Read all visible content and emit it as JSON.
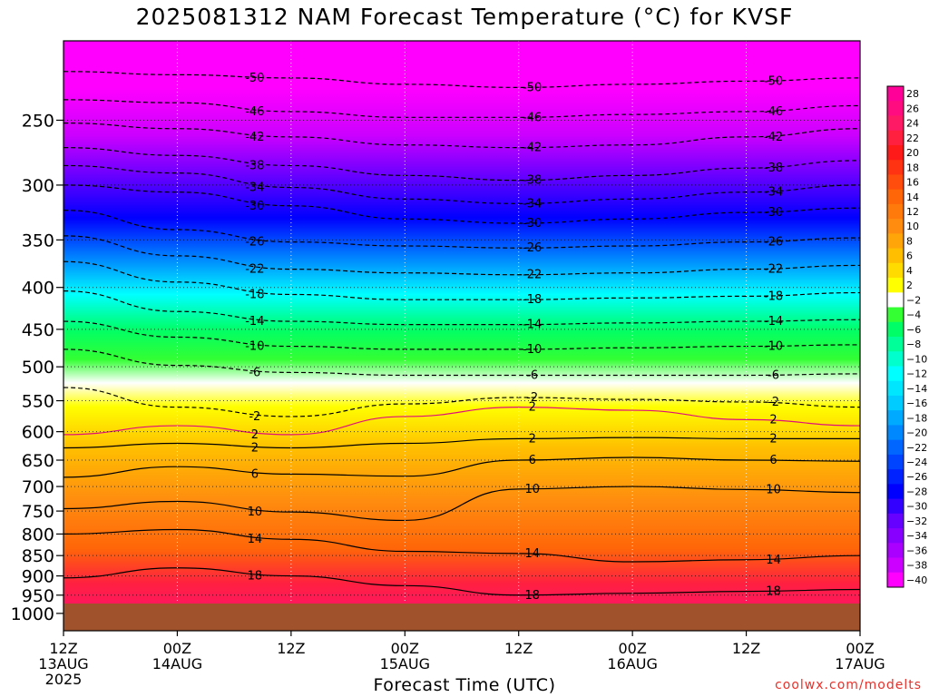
{
  "title": "2025081312 NAM Forecast Temperature (°C) for KVSF",
  "xaxis_title": "Forecast Time (UTC)",
  "credit": "coolwx.com/modelts",
  "chart_data": {
    "type": "heatmap",
    "title": "2025081312 NAM Forecast Temperature (°C) for KVSF",
    "xlabel": "Forecast Time (UTC)",
    "ylabel": "",
    "y_scale": "log-pressure (hPa), inverted",
    "y_ticks": [
      250,
      300,
      350,
      400,
      450,
      500,
      550,
      600,
      650,
      700,
      750,
      800,
      850,
      900,
      950,
      1000
    ],
    "x_ticks": [
      {
        "hour": 0,
        "label": "12Z",
        "sub1": "13AUG",
        "sub2": "2025"
      },
      {
        "hour": 12,
        "label": "00Z",
        "sub1": "14AUG",
        "sub2": ""
      },
      {
        "hour": 24,
        "label": "12Z",
        "sub1": "",
        "sub2": ""
      },
      {
        "hour": 36,
        "label": "00Z",
        "sub1": "15AUG",
        "sub2": ""
      },
      {
        "hour": 48,
        "label": "12Z",
        "sub1": "",
        "sub2": ""
      },
      {
        "hour": 60,
        "label": "00Z",
        "sub1": "16AUG",
        "sub2": ""
      },
      {
        "hour": 72,
        "label": "12Z",
        "sub1": "",
        "sub2": ""
      },
      {
        "hour": 84,
        "label": "00Z",
        "sub1": "17AUG",
        "sub2": ""
      }
    ],
    "grid": true,
    "legend": "right",
    "colorbar": {
      "levels": [
        28,
        26,
        24,
        22,
        20,
        18,
        16,
        14,
        12,
        10,
        8,
        6,
        4,
        2,
        -2,
        -4,
        -6,
        -8,
        -10,
        -12,
        -14,
        -16,
        -18,
        -20,
        -22,
        -24,
        -26,
        -28,
        -30,
        -32,
        -34,
        -36,
        -38,
        -40
      ],
      "colors": [
        "#ff0099",
        "#ff0d80",
        "#ff1a66",
        "#ff2040",
        "#ff1a1a",
        "#ff3312",
        "#ff4d0d",
        "#ff6608",
        "#ff7a0a",
        "#ff8c0f",
        "#ffa50a",
        "#ffbf00",
        "#ffdb00",
        "#ffff00",
        "#ffffff",
        "#33ff33",
        "#00ff66",
        "#00ff99",
        "#00ffcc",
        "#00ffff",
        "#00e6ff",
        "#00ccff",
        "#00aaff",
        "#0088ff",
        "#0066ff",
        "#0044ff",
        "#0022ff",
        "#0000ff",
        "#3300ff",
        "#6600ff",
        "#8800ff",
        "#aa00ff",
        "#cc00ff",
        "#ff00ff"
      ]
    },
    "isotherms": [
      {
        "label": "-50",
        "pressures": [
          218,
          220,
          222,
          226,
          228,
          226,
          224,
          222
        ]
      },
      {
        "label": "-46",
        "pressures": [
          236,
          238,
          244,
          248,
          248,
          246,
          244,
          240
        ]
      },
      {
        "label": "-42",
        "pressures": [
          252,
          256,
          262,
          268,
          270,
          268,
          262,
          256
        ]
      },
      {
        "label": "-38",
        "pressures": [
          270,
          276,
          284,
          292,
          296,
          292,
          286,
          280
        ]
      },
      {
        "label": "-34",
        "pressures": [
          284,
          290,
          302,
          312,
          316,
          312,
          306,
          300
        ]
      },
      {
        "label": "-30",
        "pressures": [
          300,
          306,
          318,
          330,
          334,
          330,
          324,
          320
        ]
      },
      {
        "label": "-26",
        "pressures": [
          322,
          340,
          352,
          356,
          358,
          356,
          352,
          348
        ]
      },
      {
        "label": "-22",
        "pressures": [
          346,
          366,
          380,
          384,
          386,
          384,
          380,
          376
        ]
      },
      {
        "label": "-18",
        "pressures": [
          372,
          394,
          408,
          414,
          414,
          412,
          410,
          406
        ]
      },
      {
        "label": "-14",
        "pressures": [
          404,
          428,
          440,
          444,
          444,
          442,
          440,
          438
        ]
      },
      {
        "label": "-10",
        "pressures": [
          440,
          460,
          472,
          476,
          476,
          474,
          472,
          470
        ]
      },
      {
        "label": "-6",
        "pressures": [
          476,
          498,
          508,
          512,
          512,
          512,
          512,
          510
        ]
      },
      {
        "label": "-2",
        "pressures": [
          530,
          560,
          575,
          555,
          545,
          548,
          552,
          560
        ]
      },
      {
        "label": "2",
        "pressures": [
          605,
          590,
          605,
          575,
          560,
          565,
          580,
          590
        ]
      },
      {
        "label": "2",
        "pressures": [
          628,
          620,
          628,
          620,
          612,
          610,
          612,
          612
        ]
      },
      {
        "label": "6",
        "pressures": [
          682,
          662,
          676,
          680,
          650,
          645,
          650,
          652
        ]
      },
      {
        "label": "10",
        "pressures": [
          745,
          730,
          752,
          770,
          705,
          700,
          706,
          712
        ]
      },
      {
        "label": "14",
        "pressures": [
          800,
          790,
          812,
          840,
          845,
          865,
          860,
          850
        ]
      },
      {
        "label": "18",
        "pressures": [
          905,
          880,
          900,
          925,
          950,
          945,
          940,
          935
        ]
      }
    ]
  }
}
